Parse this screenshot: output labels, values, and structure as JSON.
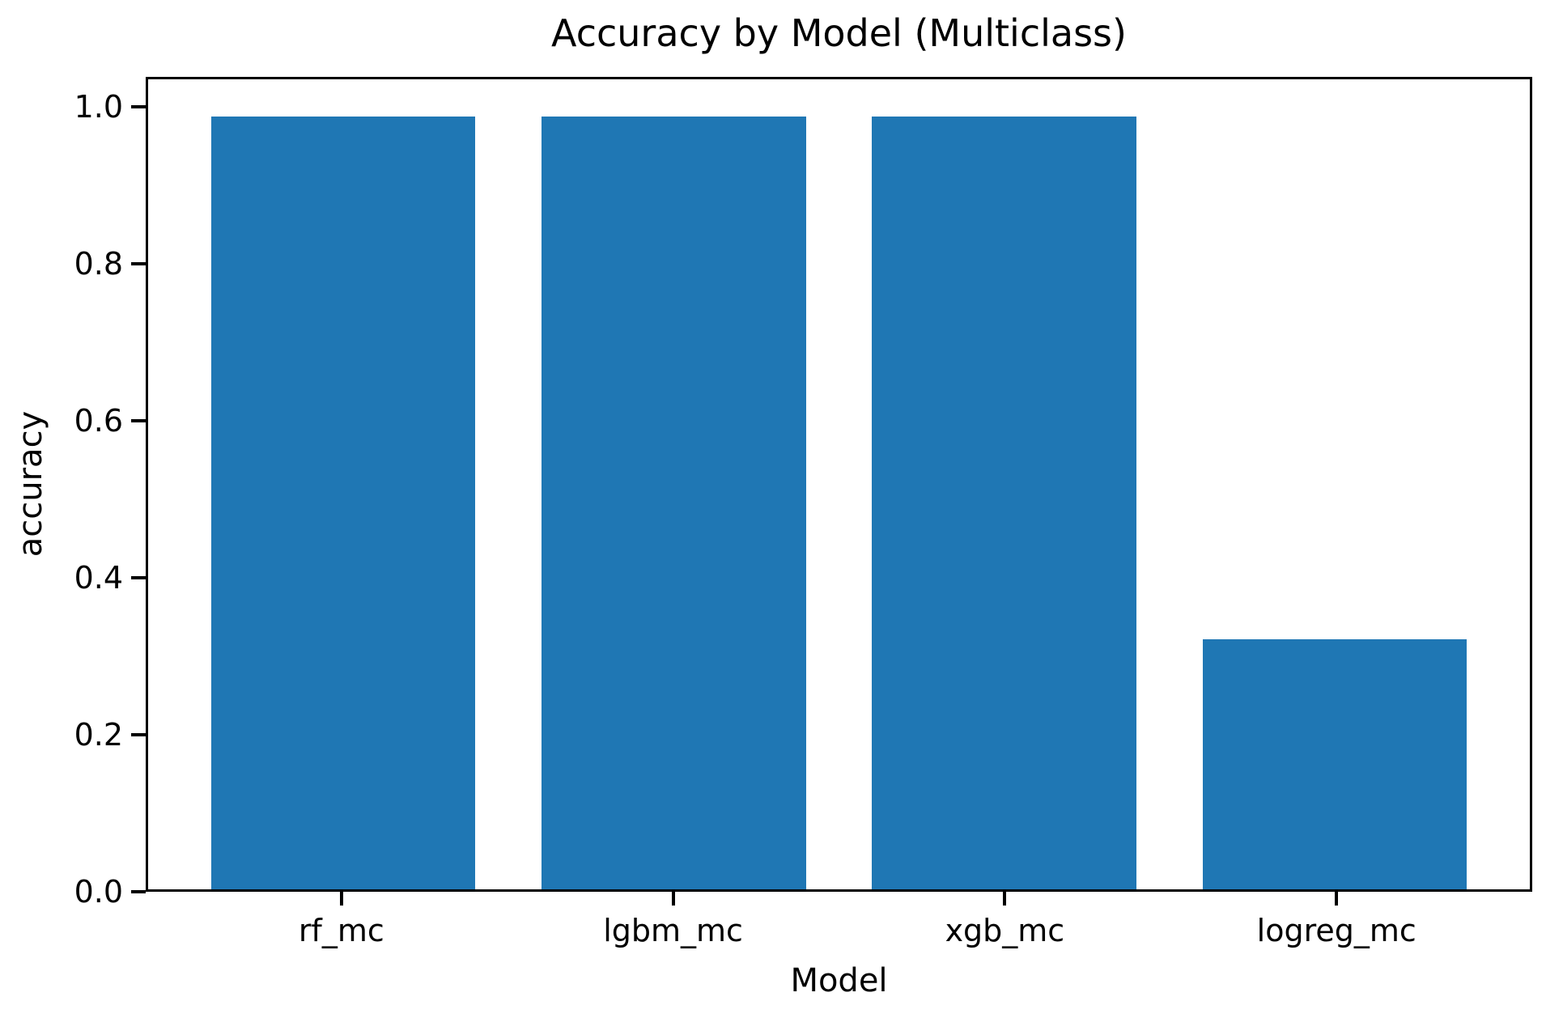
{
  "figure": {
    "background": "#ffffff"
  },
  "chart_data": {
    "type": "bar",
    "title": "Accuracy by Model (Multiclass)",
    "xlabel": "Model",
    "ylabel": "accuracy",
    "categories": [
      "rf_mc",
      "lgbm_mc",
      "xgb_mc",
      "logreg_mc"
    ],
    "values": [
      0.99,
      0.99,
      0.99,
      0.32
    ],
    "yticks": [
      0.0,
      0.2,
      0.4,
      0.6,
      0.8,
      1.0
    ],
    "ytick_decimals": 1,
    "ylim": [
      0,
      1.038
    ],
    "xlim": [
      -0.59,
      3.59
    ],
    "bar_width": 0.8,
    "bar_color": "#1f77b4",
    "axis_color": "#000000",
    "text_color": "#000000",
    "grid": false,
    "legend": false
  }
}
